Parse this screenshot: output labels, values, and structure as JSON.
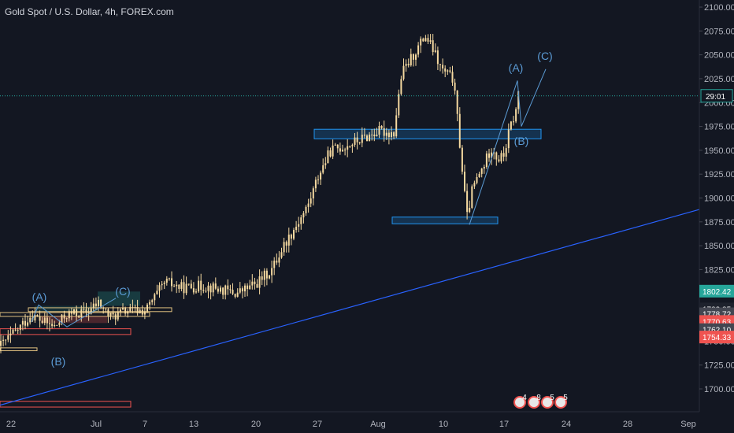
{
  "header": {
    "title": "Gold Spot / U.S. Dollar, 4h, FOREX.com"
  },
  "chart_data": {
    "type": "candlestick",
    "y_ticks": [
      1700,
      1725,
      1750,
      1775,
      1800,
      1825,
      1850,
      1875,
      1900,
      1925,
      1950,
      1975,
      2000,
      2025,
      2050,
      2075,
      2100
    ],
    "y_tick_labels": [
      "1700.00",
      "1725.00",
      "1750.00",
      "1775.00",
      "1800.00",
      "1825.00",
      "1850.00",
      "1875.00",
      "1900.00",
      "1925.00",
      "1950.00",
      "1975.00",
      "2000.00",
      "2025.00",
      "2050.00",
      "2075.00",
      "2100.00"
    ],
    "ylim": [
      1690,
      2110
    ],
    "x_ticks": [
      "22",
      "Jul",
      "7",
      "13",
      "20",
      "27",
      "Aug",
      "10",
      "17",
      "24",
      "28",
      "Sep"
    ],
    "countdown": "29:01",
    "price_labels": [
      {
        "value": 1802.42,
        "text": "1802.42",
        "color": "#26a69a"
      },
      {
        "value": 1783.85,
        "text": "1783.85",
        "color": "#1e222d"
      },
      {
        "value": 1778.72,
        "text": "1778.72",
        "color": "#434651"
      },
      {
        "value": 1770.63,
        "text": "1770.63",
        "color": "#ef5350"
      },
      {
        "value": 1762.1,
        "text": "1762.10",
        "color": "#434651"
      },
      {
        "value": 1754.33,
        "text": "1754.33",
        "color": "#ef5350"
      }
    ],
    "current_price": 2007,
    "candle_color": "#f5d9a0",
    "wave_labels_left": [
      "(A)",
      "(B)",
      "(C)"
    ],
    "wave_labels_right": [
      "(A)",
      "(B)",
      "(C)"
    ],
    "event_badges": [
      "4",
      "8",
      "5",
      "5"
    ],
    "colors": {
      "zone_blue": "#2196f3",
      "trendline": "#2962ff",
      "accent_green": "#26a69a",
      "accent_red": "#ef5350"
    }
  }
}
